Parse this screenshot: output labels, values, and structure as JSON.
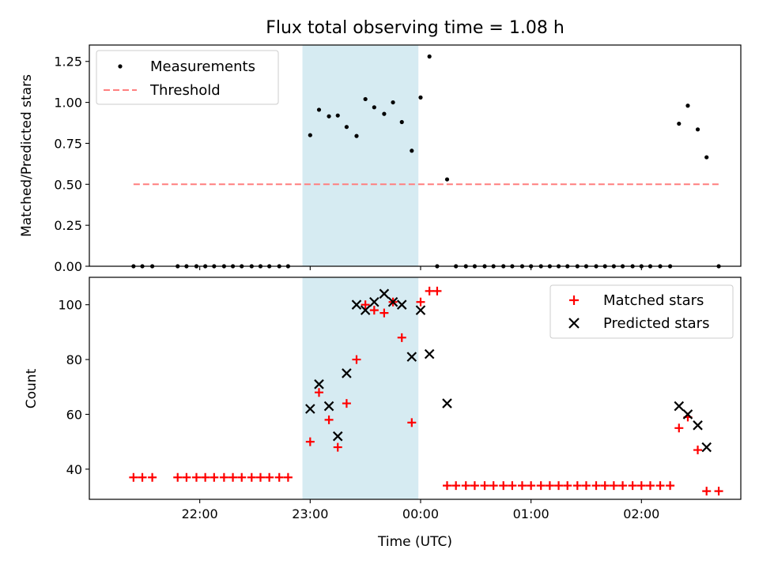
{
  "chart_data": {
    "title": "Flux total observing time = 1.08 h",
    "xlabel": "Time (UTC)",
    "x_unit": "hours since 00:00 UTC",
    "xlim": [
      -3.0,
      2.9
    ],
    "x_tick_values": [
      -2,
      -1,
      0,
      1,
      2
    ],
    "x_tick_labels": [
      "22:00",
      "23:00",
      "00:00",
      "01:00",
      "02:00"
    ],
    "shaded_span": {
      "x_start": -1.07,
      "x_end": -0.02,
      "color": "#add8e6"
    },
    "panels": [
      {
        "type": "scatter",
        "ylabel": "Matched/Predicted stars",
        "ylim": [
          0.0,
          1.35
        ],
        "y_ticks": [
          0.0,
          0.25,
          0.5,
          0.75,
          1.0,
          1.25
        ],
        "y_tick_labels": [
          "0.00",
          "0.25",
          "0.50",
          "0.75",
          "1.00",
          "1.25"
        ],
        "legend_position": "top-left",
        "series": [
          {
            "name": "Measurements",
            "marker": "dot",
            "color": "#000000",
            "points": [
              [
                -2.6,
                0.0
              ],
              [
                -2.52,
                0.0
              ],
              [
                -2.43,
                0.0
              ],
              [
                -2.2,
                0.0
              ],
              [
                -2.12,
                0.0
              ],
              [
                -2.03,
                0.0
              ],
              [
                -1.95,
                0.0
              ],
              [
                -1.87,
                0.0
              ],
              [
                -1.78,
                0.0
              ],
              [
                -1.7,
                0.0
              ],
              [
                -1.62,
                0.0
              ],
              [
                -1.53,
                0.0
              ],
              [
                -1.45,
                0.0
              ],
              [
                -1.37,
                0.0
              ],
              [
                -1.28,
                0.0
              ],
              [
                -1.2,
                0.0
              ],
              [
                -1.0,
                0.8
              ],
              [
                -0.92,
                0.955
              ],
              [
                -0.83,
                0.915
              ],
              [
                -0.75,
                0.92
              ],
              [
                -0.67,
                0.85
              ],
              [
                -0.58,
                0.795
              ],
              [
                -0.5,
                1.02
              ],
              [
                -0.42,
                0.97
              ],
              [
                -0.33,
                0.93
              ],
              [
                -0.25,
                1.0
              ],
              [
                -0.17,
                0.88
              ],
              [
                -0.08,
                0.705
              ],
              [
                0.0,
                1.03
              ],
              [
                0.08,
                1.28
              ],
              [
                0.15,
                0.0
              ],
              [
                0.24,
                0.53
              ],
              [
                0.32,
                0.0
              ],
              [
                0.41,
                0.0
              ],
              [
                0.49,
                0.0
              ],
              [
                0.58,
                0.0
              ],
              [
                0.66,
                0.0
              ],
              [
                0.75,
                0.0
              ],
              [
                0.83,
                0.0
              ],
              [
                0.92,
                0.0
              ],
              [
                1.0,
                0.0
              ],
              [
                1.09,
                0.0
              ],
              [
                1.17,
                0.0
              ],
              [
                1.25,
                0.0
              ],
              [
                1.33,
                0.0
              ],
              [
                1.42,
                0.0
              ],
              [
                1.5,
                0.0
              ],
              [
                1.59,
                0.0
              ],
              [
                1.67,
                0.0
              ],
              [
                1.75,
                0.0
              ],
              [
                1.83,
                0.0
              ],
              [
                1.92,
                0.0
              ],
              [
                2.0,
                0.0
              ],
              [
                2.08,
                0.0
              ],
              [
                2.17,
                0.0
              ],
              [
                2.26,
                0.0
              ],
              [
                2.34,
                0.87
              ],
              [
                2.42,
                0.98
              ],
              [
                2.51,
                0.835
              ],
              [
                2.59,
                0.665
              ],
              [
                2.7,
                0.0
              ]
            ]
          },
          {
            "name": "Threshold",
            "marker": "dashed-line",
            "color": "#ff7f7f",
            "points": [
              [
                -2.6,
                0.5
              ],
              [
                2.7,
                0.5
              ]
            ]
          }
        ]
      },
      {
        "type": "scatter",
        "ylabel": "Count",
        "ylim": [
          29,
          110
        ],
        "y_ticks": [
          40,
          60,
          80,
          100
        ],
        "y_tick_labels": [
          "40",
          "60",
          "80",
          "100"
        ],
        "legend_position": "top-right",
        "series": [
          {
            "name": "Matched stars",
            "marker": "plus",
            "color": "#ff0000",
            "points": [
              [
                -2.6,
                37
              ],
              [
                -2.52,
                37
              ],
              [
                -2.43,
                37
              ],
              [
                -2.2,
                37
              ],
              [
                -2.12,
                37
              ],
              [
                -2.03,
                37
              ],
              [
                -1.95,
                37
              ],
              [
                -1.87,
                37
              ],
              [
                -1.78,
                37
              ],
              [
                -1.7,
                37
              ],
              [
                -1.62,
                37
              ],
              [
                -1.53,
                37
              ],
              [
                -1.45,
                37
              ],
              [
                -1.37,
                37
              ],
              [
                -1.28,
                37
              ],
              [
                -1.2,
                37
              ],
              [
                -1.0,
                50
              ],
              [
                -0.92,
                68
              ],
              [
                -0.83,
                58
              ],
              [
                -0.75,
                48
              ],
              [
                -0.67,
                64
              ],
              [
                -0.58,
                80
              ],
              [
                -0.5,
                100
              ],
              [
                -0.42,
                98
              ],
              [
                -0.33,
                97
              ],
              [
                -0.25,
                101
              ],
              [
                -0.17,
                88
              ],
              [
                -0.08,
                57
              ],
              [
                0.0,
                101
              ],
              [
                0.08,
                105
              ],
              [
                0.15,
                105
              ],
              [
                0.24,
                34
              ],
              [
                0.32,
                34
              ],
              [
                0.41,
                34
              ],
              [
                0.49,
                34
              ],
              [
                0.58,
                34
              ],
              [
                0.66,
                34
              ],
              [
                0.75,
                34
              ],
              [
                0.83,
                34
              ],
              [
                0.92,
                34
              ],
              [
                1.0,
                34
              ],
              [
                1.09,
                34
              ],
              [
                1.17,
                34
              ],
              [
                1.25,
                34
              ],
              [
                1.33,
                34
              ],
              [
                1.42,
                34
              ],
              [
                1.5,
                34
              ],
              [
                1.59,
                34
              ],
              [
                1.67,
                34
              ],
              [
                1.75,
                34
              ],
              [
                1.83,
                34
              ],
              [
                1.92,
                34
              ],
              [
                2.0,
                34
              ],
              [
                2.08,
                34
              ],
              [
                2.17,
                34
              ],
              [
                2.26,
                34
              ],
              [
                2.34,
                55
              ],
              [
                2.42,
                59
              ],
              [
                2.51,
                47
              ],
              [
                2.59,
                32
              ],
              [
                2.7,
                32
              ]
            ]
          },
          {
            "name": "Predicted stars",
            "marker": "x",
            "color": "#000000",
            "points": [
              [
                -1.0,
                62
              ],
              [
                -0.92,
                71
              ],
              [
                -0.83,
                63
              ],
              [
                -0.75,
                52
              ],
              [
                -0.67,
                75
              ],
              [
                -0.58,
                100
              ],
              [
                -0.5,
                98
              ],
              [
                -0.42,
                101
              ],
              [
                -0.33,
                104
              ],
              [
                -0.25,
                101
              ],
              [
                -0.17,
                100
              ],
              [
                -0.08,
                81
              ],
              [
                0.0,
                98
              ],
              [
                0.08,
                82
              ],
              [
                0.24,
                64
              ],
              [
                2.34,
                63
              ],
              [
                2.42,
                60
              ],
              [
                2.51,
                56
              ],
              [
                2.59,
                48
              ]
            ]
          }
        ]
      }
    ]
  }
}
